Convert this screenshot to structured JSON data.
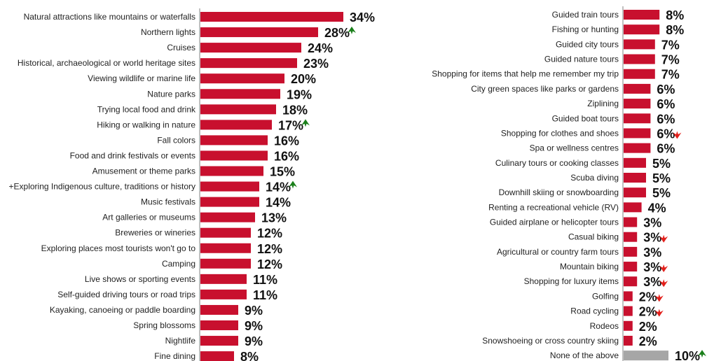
{
  "colors": {
    "bar": "#c8102e",
    "other_bar": "#a6a6a6",
    "axis": "#808080",
    "up": "#1a7f1a",
    "down": "#e3201b"
  },
  "chart_data": [
    {
      "type": "bar",
      "orientation": "horizontal",
      "xlim": [
        0,
        34
      ],
      "categories": [
        "Natural attractions like mountains or waterfalls",
        "Northern lights",
        "Cruises",
        "Historical, archaeological or world heritage sites",
        "Viewing wildlife or marine life",
        "Nature parks",
        "Trying local food and drink",
        "Hiking or walking in nature",
        "Fall colors",
        "Food and drink festivals or events",
        "Amusement or theme parks",
        "+Exploring Indigenous culture, traditions or history",
        "Music festivals",
        "Art galleries or museums",
        "Breweries or wineries",
        "Exploring places most tourists won't go to",
        "Camping",
        "Live shows or sporting events",
        "Self-guided driving tours or road trips",
        "Kayaking, canoeing or paddle boarding",
        "Spring blossoms",
        "Nightlife",
        "Fine dining"
      ],
      "values": [
        34,
        28,
        24,
        23,
        20,
        19,
        18,
        17,
        16,
        16,
        15,
        14,
        14,
        13,
        12,
        12,
        12,
        11,
        11,
        9,
        9,
        9,
        8
      ],
      "labels": [
        "34%",
        "28%",
        "24%",
        "23%",
        "20%",
        "19%",
        "18%",
        "17%",
        "16%",
        "16%",
        "15%",
        "14%",
        "14%",
        "13%",
        "12%",
        "12%",
        "12%",
        "11%",
        "11%",
        "9%",
        "9%",
        "9%",
        "8%"
      ],
      "trend": [
        "",
        "up",
        "",
        "",
        "",
        "",
        "",
        "up",
        "",
        "",
        "",
        "up",
        "",
        "",
        "",
        "",
        "",
        "",
        "",
        "",
        "",
        "",
        ""
      ],
      "grey": []
    },
    {
      "type": "bar",
      "orientation": "horizontal",
      "xlim": [
        0,
        34
      ],
      "categories": [
        "Guided train tours",
        "Fishing or hunting",
        "Guided city tours",
        "Guided nature tours",
        "Shopping for items that help me remember my trip",
        "City green spaces like parks or gardens",
        "Ziplining",
        "Guided boat tours",
        "Shopping for clothes and shoes",
        "Spa or wellness centres",
        "Culinary tours or cooking classes",
        "Scuba diving",
        "Downhill skiing or snowboarding",
        "Renting a recreational vehicle (RV)",
        "Guided airplane or helicopter tours",
        "Casual biking",
        "Agricultural or country farm tours",
        "Mountain biking",
        "Shopping for luxury items",
        "Golfing",
        "Road cycling",
        "Rodeos",
        "Snowshoeing or cross country skiing",
        "None of the above"
      ],
      "values": [
        8,
        8,
        7,
        7,
        7,
        6,
        6,
        6,
        6,
        6,
        5,
        5,
        5,
        4,
        3,
        3,
        3,
        3,
        3,
        2,
        2,
        2,
        2,
        10
      ],
      "labels": [
        "8%",
        "8%",
        "7%",
        "7%",
        "7%",
        "6%",
        "6%",
        "6%",
        "6%",
        "6%",
        "5%",
        "5%",
        "5%",
        "4%",
        "3%",
        "3%",
        "3%",
        "3%",
        "3%",
        "2%",
        "2%",
        "2%",
        "2%",
        "10%"
      ],
      "trend": [
        "",
        "",
        "",
        "",
        "",
        "",
        "",
        "",
        "down",
        "",
        "",
        "",
        "",
        "",
        "",
        "down",
        "",
        "down",
        "down",
        "down",
        "down",
        "",
        "",
        "up"
      ],
      "grey": [
        23
      ]
    }
  ]
}
